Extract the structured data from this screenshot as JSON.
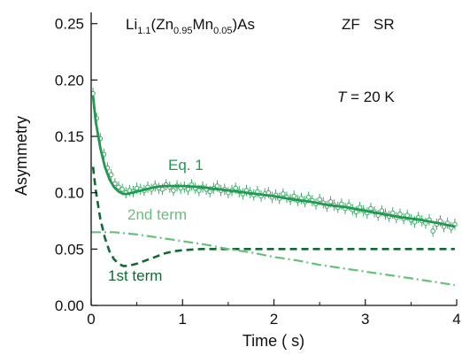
{
  "chart_data": {
    "type": "scatter",
    "title": {
      "formula_parts": [
        {
          "text": "Li",
          "sub": false
        },
        {
          "text": "1.1",
          "sub": true
        },
        {
          "text": "(Zn",
          "sub": false
        },
        {
          "text": "0.95",
          "sub": true
        },
        {
          "text": "Mn",
          "sub": false
        },
        {
          "text": "0.05",
          "sub": true
        },
        {
          "text": ")As",
          "sub": false
        }
      ],
      "tag1": "ZF",
      "tag2": "SR"
    },
    "temperature": {
      "symbol": "T",
      "text": " = 20 K"
    },
    "xlabel": "Time (  s)",
    "ylabel": "Asymmetry",
    "xlim": [
      0,
      4
    ],
    "ylim": [
      0,
      0.26
    ],
    "xticks": [
      "0",
      "1",
      "2",
      "3",
      "4"
    ],
    "yticks": [
      "0.00",
      "0.05",
      "0.10",
      "0.15",
      "0.20",
      "0.25"
    ],
    "grid": false,
    "legend": "none",
    "colors": {
      "data": "#3aa867",
      "fit": "#1e9b4f",
      "first_term": "#0f6a34",
      "second_term": "#66c07a",
      "axis": "#111111"
    },
    "annotations": {
      "fit_label": "Eq. 1",
      "second_label": "2nd term",
      "first_label": "1st term"
    },
    "series": [
      {
        "role": "data",
        "style": "open-circles-with-error-bars",
        "x": [
          0.02,
          0.06,
          0.1,
          0.14,
          0.18,
          0.22,
          0.26,
          0.3,
          0.34,
          0.38,
          0.42,
          0.46,
          0.5,
          0.54,
          0.58,
          0.62,
          0.66,
          0.7,
          0.74,
          0.78,
          0.82,
          0.86,
          0.9,
          0.94,
          0.98,
          1.02,
          1.06,
          1.1,
          1.14,
          1.18,
          1.22,
          1.26,
          1.3,
          1.34,
          1.38,
          1.42,
          1.46,
          1.5,
          1.54,
          1.58,
          1.62,
          1.66,
          1.7,
          1.74,
          1.78,
          1.82,
          1.86,
          1.9,
          1.94,
          1.98,
          2.02,
          2.06,
          2.1,
          2.14,
          2.18,
          2.22,
          2.26,
          2.3,
          2.34,
          2.38,
          2.42,
          2.46,
          2.5,
          2.54,
          2.58,
          2.62,
          2.66,
          2.7,
          2.74,
          2.78,
          2.82,
          2.86,
          2.9,
          2.94,
          2.98,
          3.02,
          3.06,
          3.1,
          3.14,
          3.18,
          3.22,
          3.26,
          3.3,
          3.34,
          3.38,
          3.42,
          3.46,
          3.5,
          3.54,
          3.58,
          3.62,
          3.66,
          3.7,
          3.74,
          3.78,
          3.82,
          3.86,
          3.9,
          3.94,
          3.98
        ],
        "y": [
          0.188,
          0.166,
          0.148,
          0.134,
          0.122,
          0.116,
          0.108,
          0.105,
          0.103,
          0.1,
          0.102,
          0.101,
          0.104,
          0.103,
          0.102,
          0.105,
          0.103,
          0.106,
          0.104,
          0.103,
          0.107,
          0.105,
          0.102,
          0.106,
          0.104,
          0.105,
          0.103,
          0.107,
          0.104,
          0.102,
          0.105,
          0.103,
          0.101,
          0.104,
          0.106,
          0.102,
          0.103,
          0.1,
          0.102,
          0.104,
          0.101,
          0.099,
          0.102,
          0.1,
          0.098,
          0.101,
          0.097,
          0.099,
          0.1,
          0.096,
          0.098,
          0.095,
          0.099,
          0.096,
          0.094,
          0.097,
          0.093,
          0.095,
          0.092,
          0.096,
          0.093,
          0.09,
          0.094,
          0.091,
          0.088,
          0.092,
          0.089,
          0.087,
          0.09,
          0.086,
          0.089,
          0.085,
          0.083,
          0.087,
          0.084,
          0.082,
          0.086,
          0.083,
          0.08,
          0.084,
          0.081,
          0.079,
          0.082,
          0.078,
          0.081,
          0.077,
          0.08,
          0.076,
          0.074,
          0.078,
          0.075,
          0.073,
          0.076,
          0.066,
          0.072,
          0.075,
          0.07,
          0.073,
          0.069,
          0.072
        ],
        "yerr": 0.005
      },
      {
        "role": "fit",
        "style": "solid",
        "x": [
          0.02,
          0.05,
          0.1,
          0.15,
          0.2,
          0.25,
          0.3,
          0.35,
          0.4,
          0.5,
          0.6,
          0.7,
          0.8,
          0.9,
          1.0,
          1.2,
          1.4,
          1.6,
          1.8,
          2.0,
          2.2,
          2.4,
          2.6,
          2.8,
          3.0,
          3.2,
          3.4,
          3.6,
          3.8,
          3.98
        ],
        "y": [
          0.186,
          0.163,
          0.14,
          0.123,
          0.112,
          0.105,
          0.101,
          0.099,
          0.099,
          0.101,
          0.103,
          0.105,
          0.106,
          0.106,
          0.106,
          0.105,
          0.103,
          0.101,
          0.099,
          0.097,
          0.094,
          0.092,
          0.089,
          0.087,
          0.084,
          0.081,
          0.078,
          0.076,
          0.073,
          0.07
        ]
      },
      {
        "role": "first_term",
        "style": "dashed",
        "x": [
          0.02,
          0.05,
          0.1,
          0.15,
          0.2,
          0.25,
          0.3,
          0.35,
          0.4,
          0.5,
          0.6,
          0.7,
          0.8,
          0.9,
          1.0,
          1.2,
          1.4,
          1.6,
          2.0,
          2.5,
          3.0,
          3.5,
          3.98
        ],
        "y": [
          0.123,
          0.102,
          0.077,
          0.06,
          0.048,
          0.041,
          0.037,
          0.035,
          0.035,
          0.037,
          0.04,
          0.043,
          0.046,
          0.048,
          0.049,
          0.05,
          0.05,
          0.05,
          0.05,
          0.05,
          0.05,
          0.05,
          0.05
        ]
      },
      {
        "role": "second_term",
        "style": "dash-dot",
        "x": [
          0.0,
          0.25,
          0.5,
          0.75,
          1.0,
          1.25,
          1.5,
          1.75,
          2.0,
          2.25,
          2.5,
          2.75,
          3.0,
          3.25,
          3.5,
          3.75,
          3.98
        ],
        "y": [
          0.065,
          0.065,
          0.063,
          0.06,
          0.057,
          0.054,
          0.05,
          0.047,
          0.043,
          0.04,
          0.036,
          0.033,
          0.03,
          0.027,
          0.024,
          0.021,
          0.018
        ]
      }
    ]
  }
}
